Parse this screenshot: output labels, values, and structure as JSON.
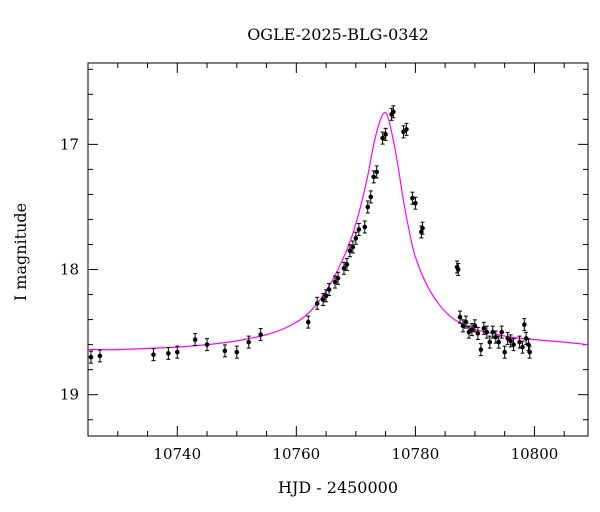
{
  "chart_data": {
    "type": "scatter",
    "title": "OGLE-2025-BLG-0342",
    "xlabel": "HJD - 2450000",
    "ylabel": "I magnitude",
    "xlim": [
      10725,
      10809
    ],
    "ylim": [
      19.33,
      16.35
    ],
    "y_inverted": true,
    "x_ticks": [
      10740,
      10760,
      10780,
      10800
    ],
    "x_tick_labels": [
      "10740",
      "10760",
      "10780",
      "10800"
    ],
    "y_ticks": [
      17,
      18,
      19
    ],
    "y_tick_labels": [
      "17",
      "18",
      "19"
    ],
    "x_minor_step": 5,
    "y_minor_step": 0.2,
    "grid": false,
    "colors": {
      "points": "#000000",
      "model": "#ff00ff"
    },
    "model": {
      "name": "",
      "x": [
        10725,
        10730,
        10735,
        10740,
        10745,
        10750,
        10755,
        10758,
        10761,
        10763,
        10765,
        10767,
        10769,
        10770.5,
        10772,
        10773,
        10774,
        10774.7,
        10775.3,
        10776,
        10777,
        10778,
        10779,
        10780,
        10782,
        10784,
        10786,
        10788,
        10790,
        10793,
        10796,
        10800,
        10805,
        10809
      ],
      "y": [
        18.64,
        18.64,
        18.63,
        18.62,
        18.6,
        18.57,
        18.52,
        18.47,
        18.39,
        18.3,
        18.17,
        18.0,
        17.78,
        17.55,
        17.25,
        17.0,
        16.82,
        16.75,
        16.77,
        16.9,
        17.15,
        17.45,
        17.7,
        17.9,
        18.13,
        18.28,
        18.38,
        18.44,
        18.48,
        18.51,
        18.54,
        18.56,
        18.58,
        18.6
      ]
    },
    "series": [
      {
        "name": "",
        "x": [
          10725.5,
          10727,
          10736,
          10738.5,
          10740,
          10743,
          10745,
          10748,
          10750,
          10752,
          10754,
          10762,
          10763.5,
          10764.5,
          10765,
          10765.5,
          10766.5,
          10767,
          10768,
          10768.5,
          10769,
          10769.5,
          10770,
          10770.5,
          10771.5,
          10772,
          10772.5,
          10773,
          10773.5,
          10774.5,
          10775,
          10776,
          10776.3,
          10778,
          10778.5,
          10779.5,
          10780,
          10781,
          10781.2,
          10787,
          10787.2,
          10787.5,
          10788,
          10788.5,
          10789,
          10789.5,
          10790,
          10790.5,
          10791,
          10791.5,
          10792,
          10792.5,
          10793,
          10793.5,
          10794,
          10794.5,
          10795,
          10795.5,
          10796,
          10796.5,
          10797.5,
          10798,
          10798.3,
          10798.6,
          10799,
          10799.2
        ],
        "y": [
          18.7,
          18.69,
          18.68,
          18.67,
          18.66,
          18.56,
          18.6,
          18.65,
          18.66,
          18.58,
          18.52,
          18.42,
          18.27,
          18.24,
          18.21,
          18.16,
          18.1,
          18.07,
          17.99,
          17.96,
          17.85,
          17.82,
          17.75,
          17.68,
          17.66,
          17.5,
          17.42,
          17.26,
          17.22,
          16.95,
          16.92,
          16.76,
          16.74,
          16.9,
          16.88,
          17.43,
          17.47,
          17.7,
          17.67,
          17.98,
          18.0,
          18.38,
          18.45,
          18.42,
          18.5,
          18.48,
          18.45,
          18.51,
          18.64,
          18.47,
          18.5,
          18.58,
          18.5,
          18.54,
          18.58,
          18.5,
          18.66,
          18.55,
          18.57,
          18.6,
          18.58,
          18.62,
          18.44,
          18.55,
          18.6,
          18.66
        ]
      }
    ]
  }
}
